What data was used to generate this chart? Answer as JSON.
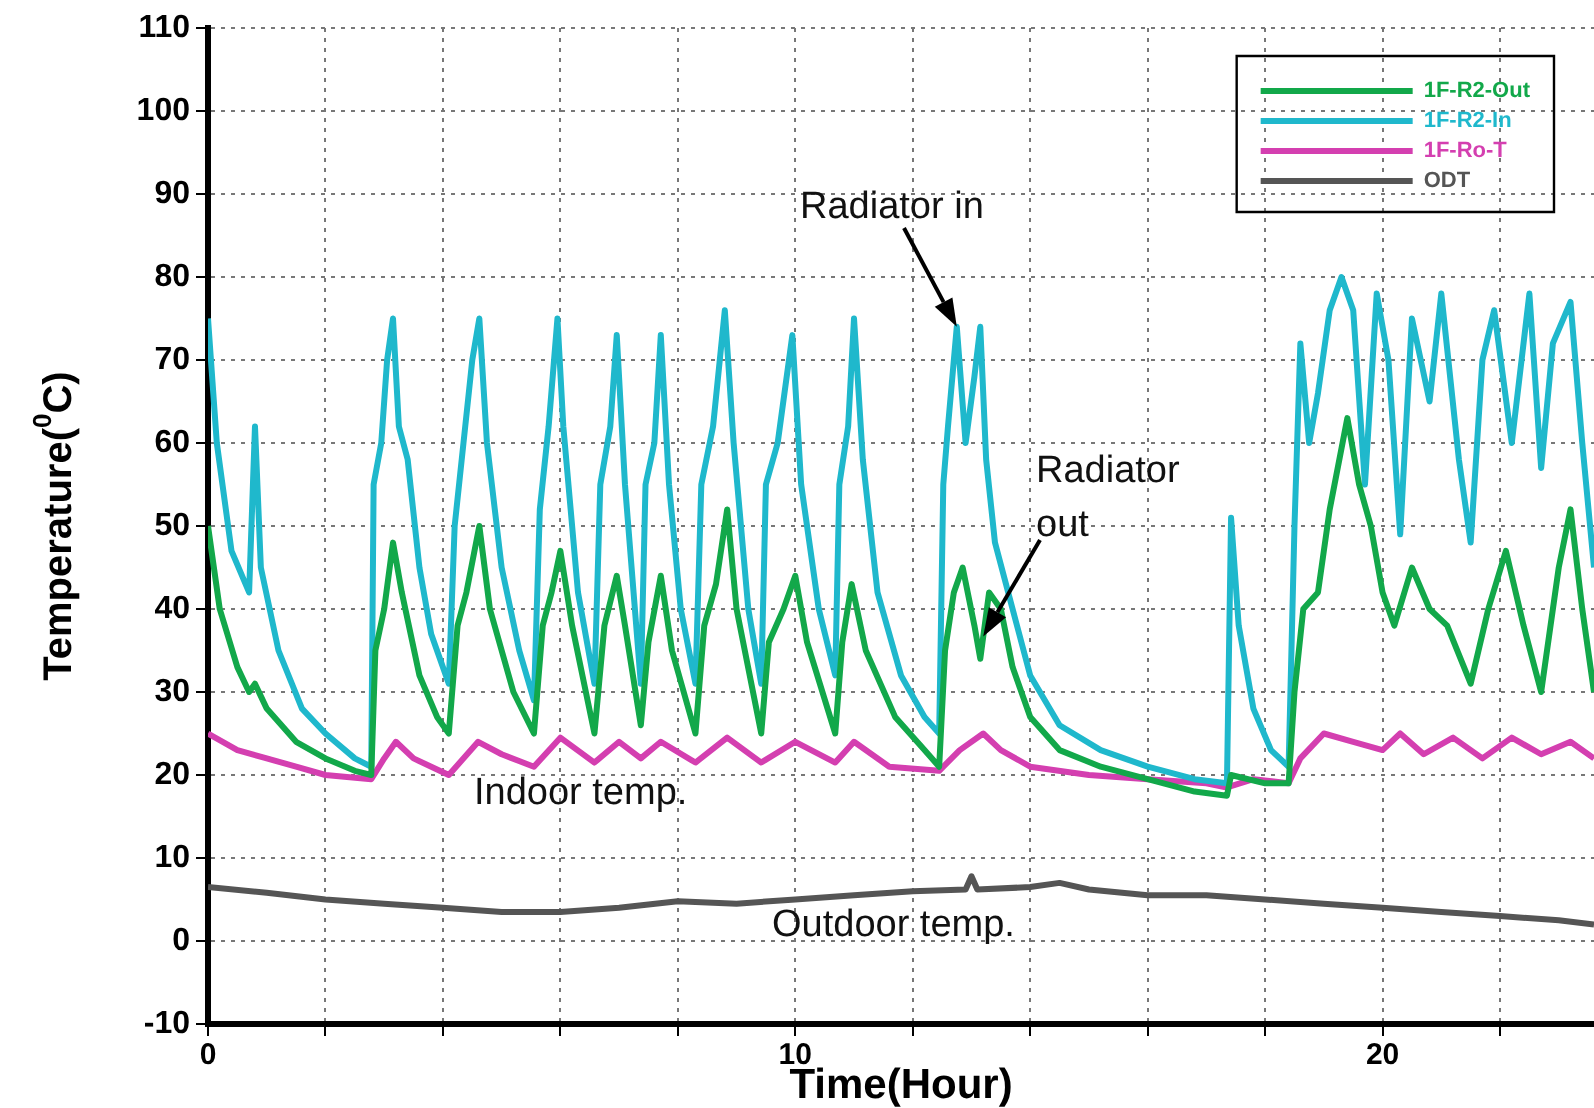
{
  "chart_data": {
    "type": "line",
    "xlabel": "Time(Hour)",
    "ylabel": "Temperature($^{0}$C)",
    "xlim": [
      0,
      23.6
    ],
    "xticks": [
      0,
      {
        "value": 2,
        "label": null
      },
      {
        "value": 4,
        "label": null
      },
      {
        "value": 6,
        "label": null
      },
      {
        "value": 8,
        "label": null
      },
      10,
      {
        "value": 12,
        "label": null
      },
      {
        "value": 14,
        "label": null
      },
      {
        "value": 16,
        "label": null
      },
      {
        "value": 18,
        "label": null
      },
      20,
      {
        "value": 22,
        "label": null
      }
    ],
    "ylim": [
      -10,
      110
    ],
    "yticks": [
      -10,
      0,
      10,
      20,
      30,
      40,
      50,
      60,
      70,
      80,
      90,
      100,
      110
    ],
    "grid": true,
    "legend": "top right",
    "marker": "none",
    "line_style": "solid",
    "annotations": [
      {
        "text": "Radiator in",
        "x": 12.75,
        "y": 74
      },
      {
        "text": "Radiator out",
        "x": 13.2,
        "y": 36.7
      },
      "Indoor temp.",
      "Outdoor temp."
    ],
    "series": [
      {
        "name": "1F-R2-Out",
        "color": "#12a84a",
        "x": [
          0,
          0.2,
          0.5,
          0.7,
          0.8,
          1.0,
          1.5,
          2.0,
          2.5,
          2.78,
          2.85,
          3.0,
          3.15,
          3.3,
          3.6,
          3.9,
          4.1,
          4.25,
          4.4,
          4.62,
          4.8,
          5.2,
          5.55,
          5.7,
          5.85,
          6.0,
          6.2,
          6.58,
          6.75,
          6.96,
          7.1,
          7.37,
          7.5,
          7.71,
          7.9,
          8.3,
          8.45,
          8.65,
          8.84,
          9.0,
          9.42,
          9.55,
          9.8,
          10.0,
          10.2,
          10.68,
          10.8,
          10.96,
          11.2,
          11.7,
          12.2,
          12.45,
          12.55,
          12.7,
          12.85,
          13.05,
          13.15,
          13.3,
          13.5,
          13.7,
          14.0,
          14.5,
          15.2,
          16.0,
          16.8,
          17.35,
          17.42,
          18.0,
          18.4,
          18.5,
          18.65,
          18.9,
          19.1,
          19.4,
          19.6,
          19.8,
          20.0,
          20.2,
          20.5,
          20.8,
          21.1,
          21.5,
          21.8,
          22.1,
          22.4,
          22.7,
          23.0,
          23.2,
          23.4,
          23.6
        ],
        "values": [
          50,
          40,
          33,
          30,
          31,
          28,
          24,
          22,
          20.5,
          20,
          35,
          40,
          48,
          42,
          32,
          27,
          25,
          38,
          42,
          50,
          40,
          30,
          25,
          38,
          42,
          47,
          38,
          25,
          38,
          44,
          38,
          26,
          36,
          44,
          35,
          25,
          38,
          43,
          52,
          40,
          25,
          36,
          40,
          44,
          36,
          25,
          36,
          43,
          35,
          27,
          23,
          21,
          35,
          42,
          45,
          38,
          34,
          42,
          40,
          33,
          27,
          23,
          21,
          19.5,
          18,
          17.5,
          20,
          19,
          19,
          30,
          40,
          42,
          52,
          63,
          55,
          50,
          42,
          38,
          45,
          40,
          38,
          31,
          40,
          47,
          38,
          30,
          45,
          52,
          40,
          30
        ]
      },
      {
        "name": "1F-R2-In",
        "color": "#1fb8cc",
        "x": [
          0,
          0.15,
          0.4,
          0.7,
          0.8,
          0.9,
          1.2,
          1.6,
          2.0,
          2.5,
          2.78,
          2.82,
          2.95,
          3.05,
          3.15,
          3.25,
          3.4,
          3.6,
          3.8,
          4.1,
          4.2,
          4.35,
          4.5,
          4.62,
          4.75,
          5.0,
          5.3,
          5.55,
          5.65,
          5.8,
          5.95,
          6.05,
          6.3,
          6.58,
          6.68,
          6.85,
          6.96,
          7.1,
          7.37,
          7.45,
          7.6,
          7.71,
          7.85,
          8.05,
          8.3,
          8.4,
          8.6,
          8.8,
          8.95,
          9.2,
          9.42,
          9.5,
          9.7,
          9.95,
          10.1,
          10.4,
          10.68,
          10.75,
          10.9,
          11.0,
          11.15,
          11.4,
          11.8,
          12.2,
          12.45,
          12.52,
          12.6,
          12.75,
          12.9,
          13.05,
          13.15,
          13.25,
          13.4,
          13.7,
          14.0,
          14.5,
          15.2,
          16.0,
          16.8,
          17.35,
          17.42,
          17.55,
          17.8,
          18.1,
          18.4,
          18.5,
          18.6,
          18.75,
          18.9,
          19.1,
          19.3,
          19.5,
          19.7,
          19.9,
          20.1,
          20.3,
          20.5,
          20.8,
          21.0,
          21.3,
          21.5,
          21.7,
          21.9,
          22.2,
          22.5,
          22.7,
          22.9,
          23.2,
          23.4,
          23.6
        ],
        "values": [
          75,
          60,
          47,
          42,
          62,
          45,
          35,
          28,
          25,
          22,
          21,
          55,
          60,
          70,
          75,
          62,
          58,
          45,
          37,
          31,
          50,
          60,
          70,
          75,
          60,
          45,
          35,
          29,
          52,
          62,
          75,
          62,
          42,
          31,
          55,
          62,
          73,
          55,
          31,
          55,
          60,
          73,
          55,
          40,
          31,
          55,
          62,
          76,
          60,
          40,
          31,
          55,
          60,
          73,
          55,
          40,
          32,
          55,
          62,
          75,
          58,
          42,
          32,
          27,
          25,
          55,
          62,
          74,
          60,
          68,
          74,
          58,
          48,
          40,
          32,
          26,
          23,
          21,
          19.5,
          19,
          51,
          38,
          28,
          23,
          21,
          50,
          72,
          60,
          66,
          76,
          80,
          76,
          55,
          78,
          70,
          49,
          75,
          65,
          78,
          58,
          48,
          70,
          76,
          60,
          78,
          57,
          72,
          77,
          60,
          45
        ]
      },
      {
        "name": "1F-Ro-T",
        "color": "#d43fb0",
        "x": [
          0,
          0.5,
          1.0,
          1.5,
          2.0,
          2.78,
          3.0,
          3.2,
          3.5,
          4.1,
          4.6,
          5.0,
          5.55,
          6.0,
          6.58,
          7.0,
          7.37,
          7.71,
          8.3,
          8.84,
          9.42,
          10.0,
          10.68,
          11.0,
          11.6,
          12.45,
          12.8,
          13.2,
          13.5,
          14.0,
          15.0,
          16.0,
          17.0,
          17.35,
          17.8,
          18.4,
          18.6,
          19.0,
          19.5,
          20.0,
          20.3,
          20.7,
          21.2,
          21.7,
          22.2,
          22.7,
          23.2,
          23.6
        ],
        "values": [
          25,
          23,
          22,
          21,
          20,
          19.5,
          22,
          24,
          22,
          20,
          24,
          22.5,
          21,
          24.5,
          21.5,
          24,
          22,
          24,
          21.5,
          24.5,
          21.5,
          24,
          21.5,
          24,
          21,
          20.5,
          23,
          25,
          23,
          21,
          20,
          19.5,
          19,
          18.5,
          19.5,
          19,
          22,
          25,
          24,
          23,
          25,
          22.5,
          24.5,
          22,
          24.5,
          22.5,
          24,
          22
        ]
      },
      {
        "name": "ODT",
        "color": "#555555",
        "x": [
          0,
          1,
          2,
          3,
          4,
          5,
          6,
          7,
          8,
          9,
          10,
          11,
          12,
          12.9,
          13.0,
          13.1,
          14.0,
          14.5,
          15,
          16,
          17,
          18,
          19,
          20,
          21,
          22,
          23,
          23.6
        ],
        "values": [
          6.5,
          5.8,
          5,
          4.5,
          4,
          3.5,
          3.5,
          4,
          4.8,
          4.5,
          5,
          5.5,
          6,
          6.2,
          7.8,
          6.2,
          6.5,
          7,
          6.2,
          5.5,
          5.5,
          5,
          4.5,
          4,
          3.5,
          3,
          2.5,
          2
        ]
      }
    ]
  }
}
